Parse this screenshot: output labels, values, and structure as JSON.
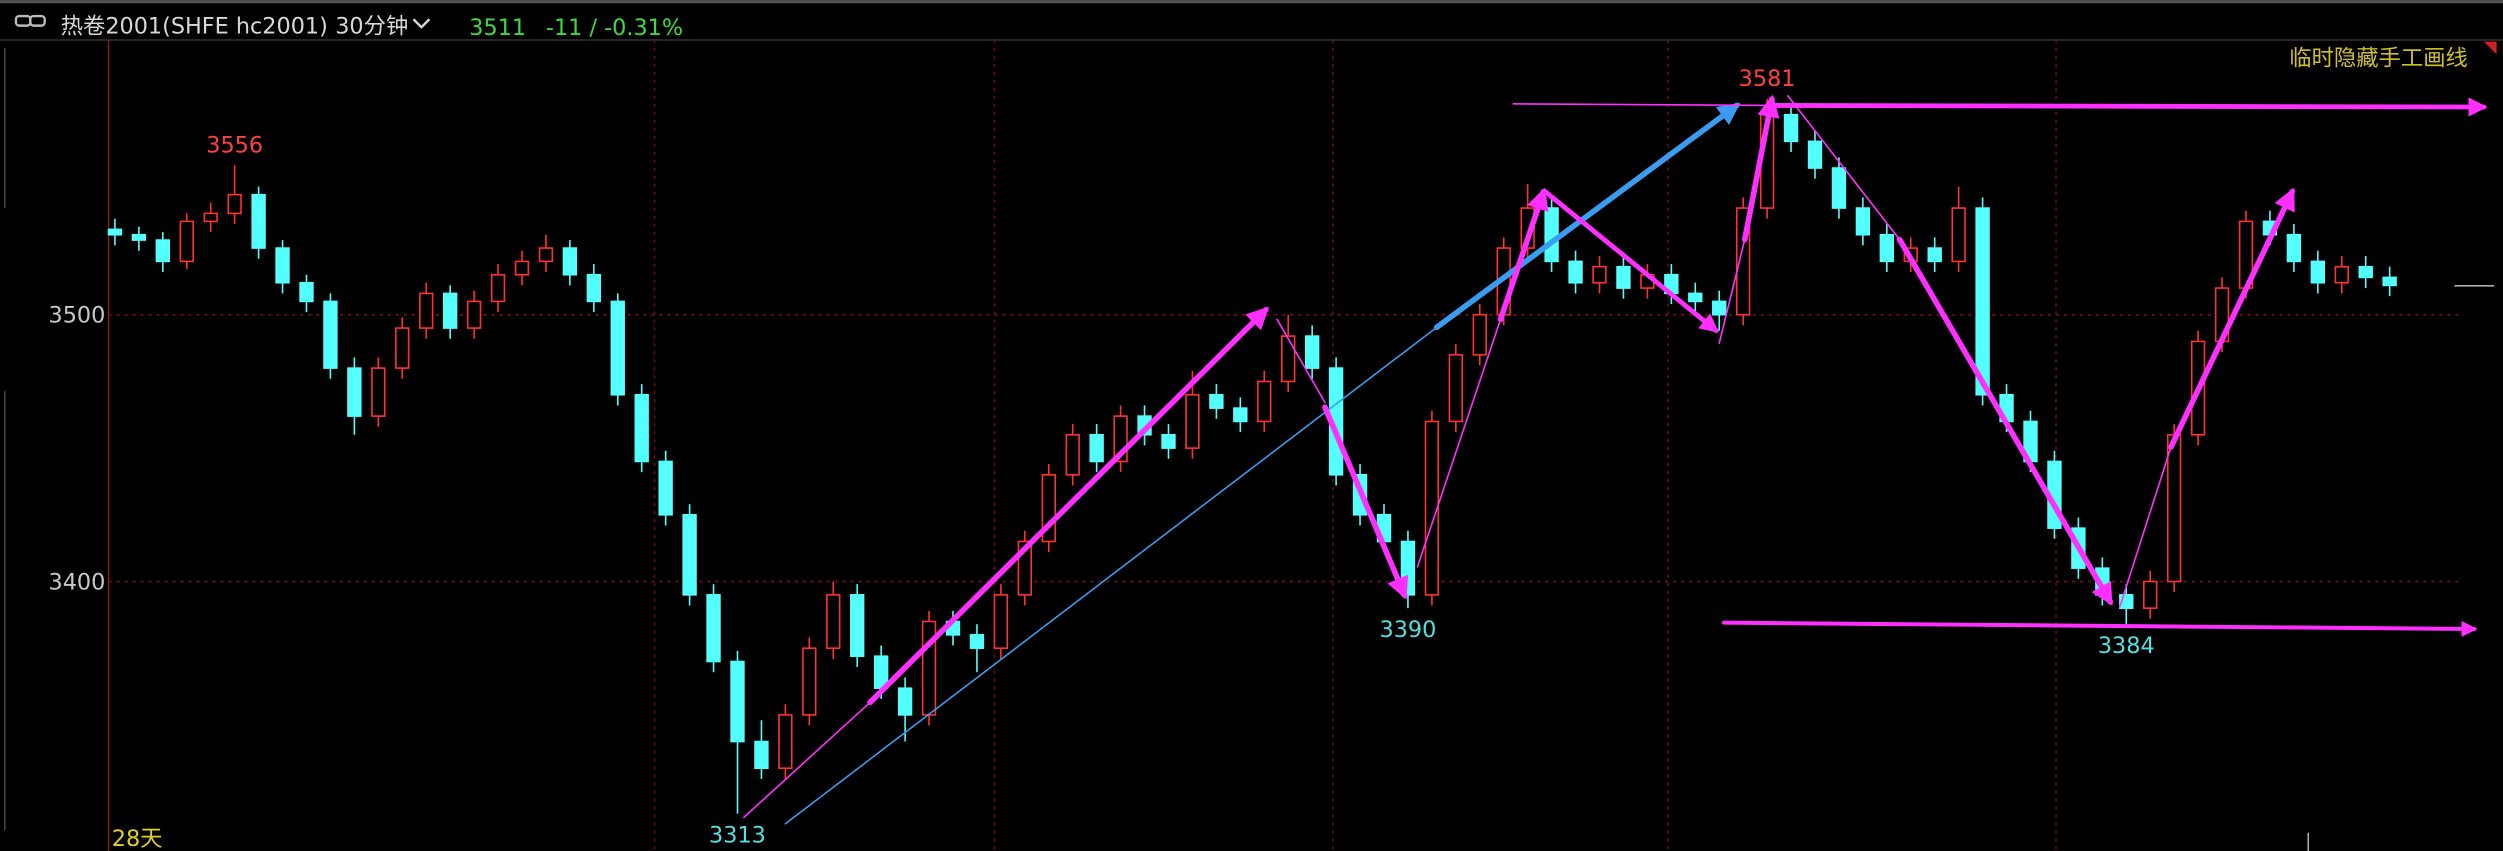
{
  "header": {
    "symbol": "热卷2001(SHFE hc2001)",
    "period": "30分钟",
    "last": 3511,
    "change": "-11 / -0.31%"
  },
  "chart_data": {
    "type": "candlestick",
    "ohlc": [
      [
        3532,
        3536,
        3526,
        3530
      ],
      [
        3530,
        3533,
        3524,
        3528
      ],
      [
        3528,
        3531,
        3516,
        3520
      ],
      [
        3520,
        3538,
        3517,
        3535
      ],
      [
        3535,
        3542,
        3531,
        3538
      ],
      [
        3538,
        3556,
        3534,
        3545
      ],
      [
        3545,
        3548,
        3521,
        3525
      ],
      [
        3525,
        3528,
        3508,
        3512
      ],
      [
        3512,
        3515,
        3501,
        3505
      ],
      [
        3505,
        3508,
        3476,
        3480
      ],
      [
        3480,
        3484,
        3455,
        3462
      ],
      [
        3462,
        3484,
        3458,
        3480
      ],
      [
        3480,
        3499,
        3476,
        3495
      ],
      [
        3495,
        3512,
        3491,
        3508
      ],
      [
        3508,
        3511,
        3491,
        3495
      ],
      [
        3495,
        3509,
        3491,
        3505
      ],
      [
        3505,
        3519,
        3501,
        3515
      ],
      [
        3515,
        3524,
        3511,
        3520
      ],
      [
        3520,
        3530,
        3516,
        3525
      ],
      [
        3525,
        3528,
        3511,
        3515
      ],
      [
        3515,
        3519,
        3501,
        3505
      ],
      [
        3505,
        3508,
        3466,
        3470
      ],
      [
        3470,
        3474,
        3441,
        3445
      ],
      [
        3445,
        3449,
        3421,
        3425
      ],
      [
        3425,
        3429,
        3391,
        3395
      ],
      [
        3395,
        3399,
        3366,
        3370
      ],
      [
        3370,
        3374,
        3313,
        3340
      ],
      [
        3340,
        3348,
        3326,
        3330
      ],
      [
        3330,
        3354,
        3326,
        3350
      ],
      [
        3350,
        3379,
        3346,
        3375
      ],
      [
        3375,
        3400,
        3371,
        3395
      ],
      [
        3395,
        3399,
        3368,
        3372
      ],
      [
        3372,
        3376,
        3356,
        3360
      ],
      [
        3360,
        3364,
        3340,
        3350
      ],
      [
        3350,
        3389,
        3346,
        3385
      ],
      [
        3385,
        3389,
        3376,
        3380
      ],
      [
        3380,
        3384,
        3366,
        3375
      ],
      [
        3375,
        3399,
        3371,
        3395
      ],
      [
        3395,
        3419,
        3391,
        3415
      ],
      [
        3415,
        3444,
        3411,
        3440
      ],
      [
        3440,
        3459,
        3436,
        3455
      ],
      [
        3455,
        3459,
        3441,
        3445
      ],
      [
        3445,
        3466,
        3441,
        3462
      ],
      [
        3462,
        3466,
        3451,
        3455
      ],
      [
        3455,
        3459,
        3446,
        3450
      ],
      [
        3450,
        3479,
        3446,
        3470
      ],
      [
        3470,
        3474,
        3461,
        3465
      ],
      [
        3465,
        3469,
        3456,
        3460
      ],
      [
        3460,
        3479,
        3456,
        3475
      ],
      [
        3475,
        3500,
        3471,
        3492
      ],
      [
        3492,
        3496,
        3476,
        3480
      ],
      [
        3480,
        3484,
        3436,
        3440
      ],
      [
        3440,
        3444,
        3421,
        3425
      ],
      [
        3425,
        3429,
        3411,
        3415
      ],
      [
        3415,
        3419,
        3390,
        3395
      ],
      [
        3395,
        3464,
        3391,
        3460
      ],
      [
        3460,
        3489,
        3456,
        3485
      ],
      [
        3485,
        3504,
        3481,
        3500
      ],
      [
        3500,
        3529,
        3496,
        3525
      ],
      [
        3525,
        3549,
        3521,
        3540
      ],
      [
        3540,
        3544,
        3516,
        3520
      ],
      [
        3520,
        3524,
        3508,
        3512
      ],
      [
        3512,
        3522,
        3508,
        3518
      ],
      [
        3518,
        3522,
        3506,
        3510
      ],
      [
        3510,
        3519,
        3506,
        3515
      ],
      [
        3515,
        3519,
        3504,
        3508
      ],
      [
        3508,
        3512,
        3501,
        3505
      ],
      [
        3505,
        3509,
        3494,
        3500
      ],
      [
        3500,
        3544,
        3496,
        3540
      ],
      [
        3540,
        3581,
        3536,
        3575
      ],
      [
        3575,
        3579,
        3561,
        3565
      ],
      [
        3565,
        3569,
        3551,
        3555
      ],
      [
        3555,
        3559,
        3536,
        3540
      ],
      [
        3540,
        3544,
        3526,
        3530
      ],
      [
        3530,
        3534,
        3516,
        3520
      ],
      [
        3520,
        3529,
        3516,
        3525
      ],
      [
        3525,
        3529,
        3516,
        3520
      ],
      [
        3520,
        3548,
        3516,
        3540
      ],
      [
        3540,
        3544,
        3466,
        3470
      ],
      [
        3470,
        3474,
        3456,
        3460
      ],
      [
        3460,
        3464,
        3441,
        3445
      ],
      [
        3445,
        3449,
        3416,
        3420
      ],
      [
        3420,
        3424,
        3401,
        3405
      ],
      [
        3405,
        3409,
        3391,
        3395
      ],
      [
        3395,
        3399,
        3384,
        3390
      ],
      [
        3390,
        3404,
        3386,
        3400
      ],
      [
        3400,
        3459,
        3396,
        3455
      ],
      [
        3455,
        3494,
        3451,
        3490
      ],
      [
        3490,
        3514,
        3486,
        3510
      ],
      [
        3510,
        3539,
        3506,
        3535
      ],
      [
        3535,
        3539,
        3526,
        3530
      ],
      [
        3530,
        3534,
        3516,
        3520
      ],
      [
        3520,
        3524,
        3508,
        3512
      ],
      [
        3512,
        3522,
        3508,
        3518
      ],
      [
        3518,
        3522,
        3510,
        3514
      ],
      [
        3514,
        3518,
        3507,
        3511
      ]
    ],
    "up_color": "#ff3232",
    "down_color": "#54ffff",
    "ylim": [
      3299,
      3603
    ],
    "yticks": [
      3400,
      3500
    ],
    "grid": true
  },
  "span_label": "28天",
  "toggle_label": "临时隐藏手工画线"
}
